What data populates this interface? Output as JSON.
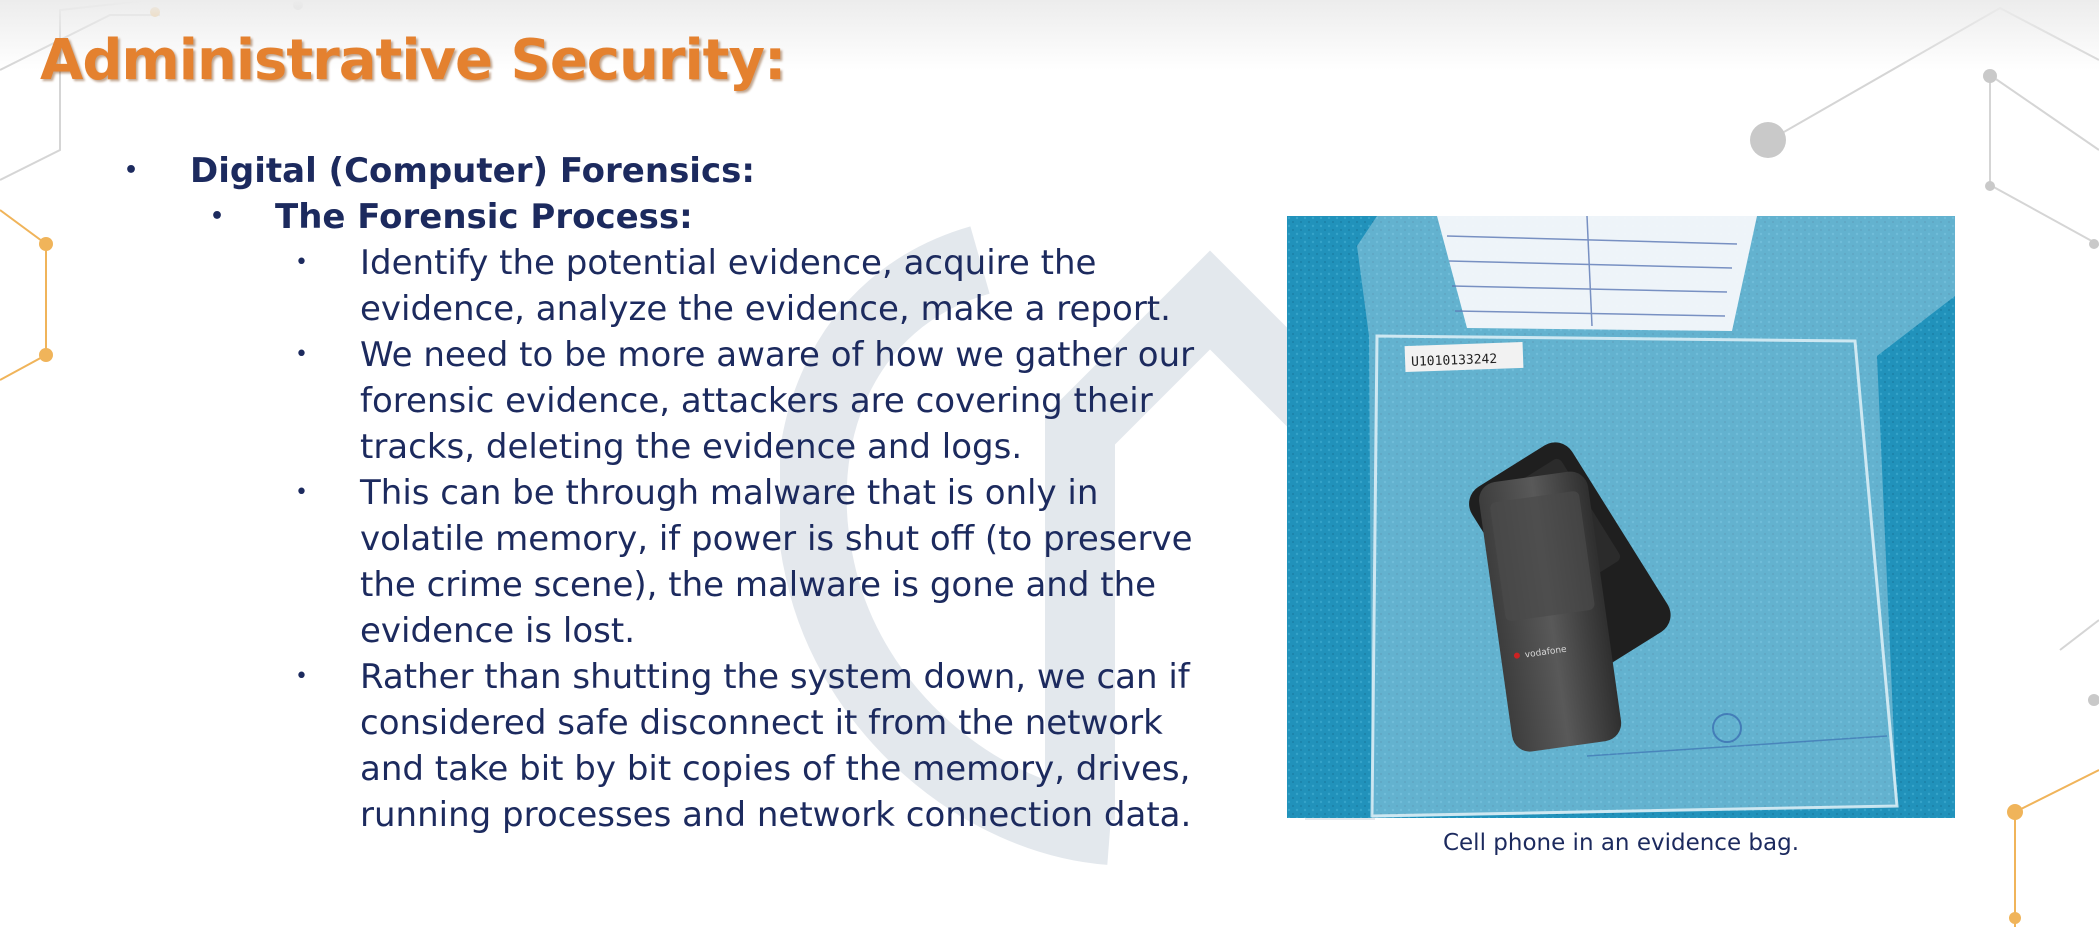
{
  "slide": {
    "title": "Administrative Security:",
    "bullets": {
      "level1": "Digital (Computer) Forensics:",
      "level2": "The Forensic Process:",
      "level3": [
        "Identify the potential evidence, acquire the evidence, analyze the evidence, make a report.",
        "We need to be more aware of how we gather our forensic evidence, attackers are covering their tracks, deleting the evidence and logs.",
        "This can be through malware that is only in volatile memory, if power is shut off (to preserve the crime scene), the malware is gone and the evidence is lost.",
        "Rather than shutting the system down, we can if considered safe disconnect it from the network and take bit by bit copies of the memory, drives, running processes and network connection data."
      ]
    },
    "image": {
      "bag_label": "U1010133242",
      "phone_brand": "vodafone",
      "caption": "Cell phone in an evidence bag."
    }
  },
  "colors": {
    "title": "#e4812f",
    "text": "#1c2a5e",
    "accent_dot": "#f0b45a",
    "network_gray": "#c9c9c9",
    "photo_bg": "#1f8fb8"
  }
}
